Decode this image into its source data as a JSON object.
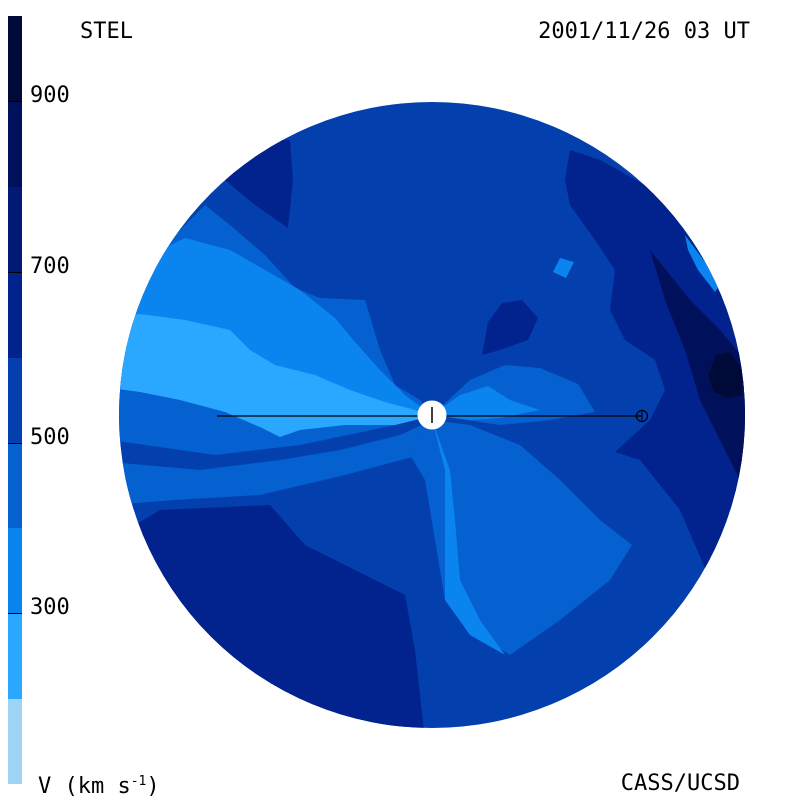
{
  "header": {
    "observatory": "STEL",
    "timestamp": "2001/11/26 03 UT"
  },
  "footer": {
    "credit": "CASS/UCSD",
    "quantity": "V (km s",
    "exponent": "-1",
    "close": ")"
  },
  "colorbar": {
    "ticks": [
      "300",
      "500",
      "700",
      "900"
    ],
    "levels": [
      {
        "from": 100,
        "to": 200,
        "color": "#9fd3f5"
      },
      {
        "from": 200,
        "to": 300,
        "color": "#2aa7ff"
      },
      {
        "from": 300,
        "to": 400,
        "color": "#0a84ee"
      },
      {
        "from": 400,
        "to": 500,
        "color": "#0560d0"
      },
      {
        "from": 500,
        "to": 600,
        "color": "#0340ad"
      },
      {
        "from": 600,
        "to": 700,
        "color": "#02228e"
      },
      {
        "from": 700,
        "to": 800,
        "color": "#031a74"
      },
      {
        "from": 800,
        "to": 900,
        "color": "#01105a"
      },
      {
        "from": 900,
        "to": 1000,
        "color": "#000a38"
      }
    ]
  },
  "map": {
    "sun_marker": "sun-symbol",
    "earth_marker": "earth-symbol"
  }
}
